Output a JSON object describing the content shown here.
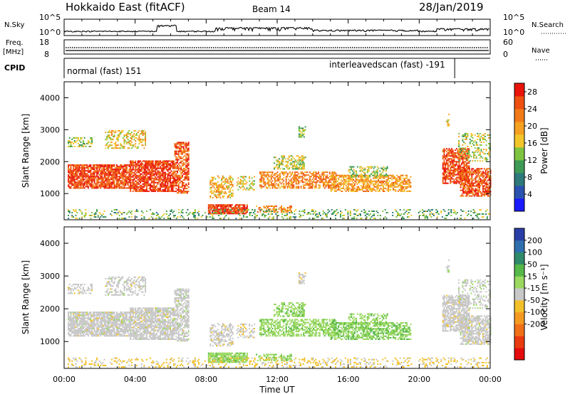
{
  "header": {
    "radar": "Hokkaido East (fitACF)",
    "beam": "Beam 14",
    "date": "28/Jan/2019"
  },
  "top_panels": {
    "nsky_label": "N.Sky",
    "nsearch_label": "N.Search",
    "nsky_ticks": [
      "10^5",
      "10^0"
    ],
    "nsearch_ticks": [
      "10^5",
      "10^0"
    ],
    "freq_label_1": "Freq.",
    "freq_label_2": "[MHz]",
    "freq_ticks": [
      "18",
      "8"
    ],
    "nave_label": "Nave",
    "nave_ticks": [
      "60",
      "0"
    ],
    "cpid_label": "CPID",
    "cpid_segments": [
      {
        "text": "normal (fast) 151",
        "start_hour": 0
      },
      {
        "text": "interleavedscan (fast) -191",
        "start_hour": 22.0
      }
    ]
  },
  "axes": {
    "xlabel": "Time UT",
    "xticks": [
      "00:00",
      "04:00",
      "08:00",
      "12:00",
      "16:00",
      "20:00",
      "00:00"
    ],
    "ylabel": "Slant Range [km]",
    "yticks": [
      "1000",
      "2000",
      "3000",
      "4000"
    ]
  },
  "colorbars": {
    "power": {
      "label": "Power [dB]",
      "ticks": [
        "4",
        "8",
        "12",
        "16",
        "20",
        "24",
        "28"
      ],
      "colors": [
        "#1a1aff",
        "#2b52b0",
        "#2e7a7a",
        "#3f9a55",
        "#7fc440",
        "#f2c62a",
        "#f5a020",
        "#f07a18",
        "#ee5012",
        "#e8140a"
      ]
    },
    "velocity": {
      "label": "Velocity [m s⁻¹]",
      "ticks": [
        "200",
        "100",
        "50",
        "15",
        "-15",
        "-50",
        "-100",
        "-200"
      ],
      "colors": [
        "#2a3ea8",
        "#2f6fae",
        "#2e8a6a",
        "#55b848",
        "#9ad860",
        "#c8c8c8",
        "#f2c12a",
        "#f59a20",
        "#f07018",
        "#ea3a10",
        "#e40c0c"
      ]
    }
  },
  "chart_data": {
    "type": "heatmap",
    "title": "Hokkaido East (fitACF)  Beam 14  28/Jan/2019",
    "xlabel": "Time UT",
    "ylabel": "Slant Range [km]",
    "x_range_hours": [
      0,
      24
    ],
    "y_range_km": [
      180,
      4500
    ],
    "nsky_range": [
      1,
      100000
    ],
    "freq_range_mhz": [
      8,
      18
    ],
    "frequency_mhz": 11.0,
    "nave_range": [
      0,
      60
    ],
    "cpid_change_hour": 22.0,
    "power_range_db": [
      0,
      30
    ],
    "velocity_range_ms": [
      -250,
      250
    ],
    "echo_regions": [
      {
        "t0": 0.2,
        "t1": 3.7,
        "r0": 1150,
        "r1": 1900,
        "power": 26,
        "velocity": 0,
        "density": 0.85
      },
      {
        "t0": 3.7,
        "t1": 6.2,
        "r0": 1050,
        "r1": 2000,
        "power": 27,
        "velocity": 0,
        "density": 0.8
      },
      {
        "t0": 6.2,
        "t1": 7.0,
        "r0": 1000,
        "r1": 2600,
        "power": 25,
        "velocity": 2,
        "density": 0.65
      },
      {
        "t0": 0.2,
        "t1": 1.6,
        "r0": 2450,
        "r1": 2750,
        "power": 14,
        "velocity": -2,
        "density": 0.45
      },
      {
        "t0": 2.3,
        "t1": 4.6,
        "r0": 2400,
        "r1": 2950,
        "power": 17,
        "velocity": 0,
        "density": 0.45
      },
      {
        "t0": 8.1,
        "t1": 10.3,
        "r0": 350,
        "r1": 650,
        "power": 27,
        "velocity": 50,
        "density": 0.85
      },
      {
        "t0": 10.8,
        "t1": 12.8,
        "r0": 400,
        "r1": 600,
        "power": 21,
        "velocity": 50,
        "density": 0.5
      },
      {
        "t0": 8.2,
        "t1": 9.5,
        "r0": 850,
        "r1": 1550,
        "power": 19,
        "velocity": -5,
        "density": 0.45
      },
      {
        "t0": 9.7,
        "t1": 10.7,
        "r0": 1100,
        "r1": 1550,
        "power": 16,
        "velocity": -10,
        "density": 0.35
      },
      {
        "t0": 11.0,
        "t1": 15.3,
        "r0": 1150,
        "r1": 1650,
        "power": 22,
        "velocity": 50,
        "density": 0.6
      },
      {
        "t0": 11.8,
        "t1": 13.6,
        "r0": 1750,
        "r1": 2200,
        "power": 15,
        "velocity": 55,
        "density": 0.5
      },
      {
        "t0": 15.0,
        "t1": 19.5,
        "r0": 1050,
        "r1": 1550,
        "power": 20,
        "velocity": 60,
        "density": 0.6
      },
      {
        "t0": 16.0,
        "t1": 18.2,
        "r0": 1500,
        "r1": 1850,
        "power": 14,
        "velocity": 50,
        "density": 0.4
      },
      {
        "t0": 13.2,
        "t1": 13.6,
        "r0": 2750,
        "r1": 3100,
        "power": 13,
        "velocity": -5,
        "density": 0.45
      },
      {
        "t0": 21.3,
        "t1": 22.8,
        "r0": 1300,
        "r1": 2400,
        "power": 26,
        "velocity": -3,
        "density": 0.7
      },
      {
        "t0": 22.3,
        "t1": 24.0,
        "r0": 900,
        "r1": 1800,
        "power": 25,
        "velocity": 0,
        "density": 0.75
      },
      {
        "t0": 22.2,
        "t1": 24.0,
        "r0": 2000,
        "r1": 2900,
        "power": 15,
        "velocity": 5,
        "density": 0.3
      },
      {
        "t0": 21.5,
        "t1": 21.7,
        "r0": 3100,
        "r1": 3500,
        "power": 18,
        "velocity": 10,
        "density": 0.4
      },
      {
        "t0": 0.2,
        "t1": 24.0,
        "r0": 200,
        "r1": 500,
        "power": 12,
        "velocity": -30,
        "density": 0.22
      }
    ]
  }
}
